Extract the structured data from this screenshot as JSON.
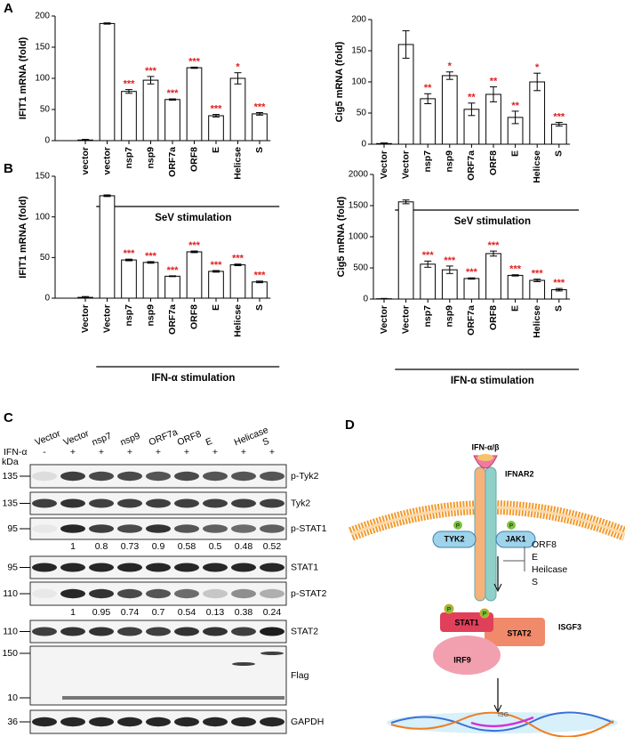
{
  "panels": [
    "A",
    "B",
    "C",
    "D"
  ],
  "chart_data": [
    {
      "type": "bar",
      "ylabel": "IFIT1 mRNA (fold)",
      "categories": [
        "vector",
        "vector",
        "nsp7",
        "nsp9",
        "ORF7a",
        "ORF8",
        "E",
        "Helicse",
        "S"
      ],
      "values": [
        1,
        188,
        79,
        97,
        66,
        117,
        40,
        100,
        43
      ],
      "errors": [
        1,
        1,
        3,
        6,
        1,
        1,
        2,
        9,
        2
      ],
      "significance": [
        null,
        null,
        "***",
        "***",
        "***",
        "***",
        "***",
        "*",
        "***"
      ],
      "group_label": "SeV stimulation",
      "ylim": [
        0,
        200
      ],
      "yticks": [
        0,
        50,
        100,
        150,
        200
      ],
      "color": "#ffffff",
      "significance_color": "#e02020"
    },
    {
      "type": "bar",
      "ylabel": "Cig5 mRNA (fold)",
      "categories": [
        "Vector",
        "Vector",
        "nsp7",
        "nsp9",
        "ORF7a",
        "ORF8",
        "E",
        "Helicse",
        "S"
      ],
      "values": [
        1,
        160,
        73,
        110,
        56,
        80,
        43,
        100,
        32
      ],
      "errors": [
        1,
        22,
        8,
        6,
        10,
        12,
        10,
        14,
        3
      ],
      "significance": [
        null,
        null,
        "**",
        "*",
        "**",
        "**",
        "**",
        "*",
        "***"
      ],
      "group_label": "SeV stimulation",
      "ylim": [
        0,
        200
      ],
      "yticks": [
        0,
        50,
        100,
        150,
        200
      ],
      "color": "#ffffff",
      "significance_color": "#e02020"
    },
    {
      "type": "bar",
      "ylabel": "IFIT1 mRNA (fold)",
      "categories": [
        "Vector",
        "Vector",
        "nsp7",
        "nsp9",
        "ORF7a",
        "ORF8",
        "E",
        "Helicse",
        "S"
      ],
      "values": [
        1,
        126,
        47,
        44,
        27,
        57,
        33,
        41,
        20
      ],
      "errors": [
        1,
        1,
        1,
        1,
        0.5,
        1,
        1,
        1,
        1
      ],
      "significance": [
        null,
        null,
        "***",
        "***",
        "***",
        "***",
        "***",
        "***",
        "***"
      ],
      "group_label": "IFN-α stimulation",
      "ylim": [
        0,
        150
      ],
      "yticks": [
        0,
        50,
        100,
        150
      ],
      "color": "#ffffff",
      "significance_color": "#e02020"
    },
    {
      "type": "bar",
      "ylabel": "Cig5 mRNA (fold)",
      "categories": [
        "Vector",
        "Vector",
        "nsp7",
        "nsp9",
        "ORF7a",
        "ORF8",
        "E",
        "Helicse",
        "S"
      ],
      "values": [
        5,
        1560,
        560,
        470,
        330,
        730,
        380,
        300,
        150
      ],
      "errors": [
        5,
        30,
        50,
        60,
        10,
        40,
        10,
        20,
        20
      ],
      "significance": [
        null,
        null,
        "***",
        "***",
        "***",
        "***",
        "***",
        "***",
        "***"
      ],
      "group_label": "IFN-α stimulation",
      "ylim": [
        0,
        2000
      ],
      "yticks": [
        0,
        500,
        1000,
        1500,
        2000
      ],
      "color": "#ffffff",
      "significance_color": "#e02020"
    }
  ],
  "blot": {
    "lanes": [
      "Vector",
      "Vector",
      "nsp7",
      "nsp9",
      "ORF7a",
      "ORF8",
      "E",
      "Helicase",
      "S"
    ],
    "treatment_label": "IFN-α",
    "treatment": [
      "-",
      "+",
      "+",
      "+",
      "+",
      "+",
      "+",
      "+",
      "+"
    ],
    "kda_label": "kDa",
    "rows": [
      {
        "name": "p-Tyk2",
        "kda": [
          135
        ]
      },
      {
        "name": "Tyk2",
        "kda": [
          135
        ]
      },
      {
        "name": "p-STAT1",
        "kda": [
          95
        ],
        "quant": [
          1,
          0.8,
          0.73,
          0.9,
          0.58,
          0.5,
          0.48,
          0.52
        ]
      },
      {
        "name": "STAT1",
        "kda": [
          95
        ]
      },
      {
        "name": "p-STAT2",
        "kda": [
          110
        ],
        "quant": [
          1,
          0.95,
          0.74,
          0.7,
          0.54,
          0.13,
          0.38,
          0.24
        ]
      },
      {
        "name": "STAT2",
        "kda": [
          110
        ]
      },
      {
        "name": "Flag",
        "kda": [
          150,
          10
        ]
      },
      {
        "name": "GAPDH",
        "kda": [
          36
        ]
      }
    ]
  },
  "diagram": {
    "ligand": "IFN-α/β",
    "receptor": "IFNAR2",
    "kinases": [
      "TYK2",
      "JAK1"
    ],
    "phospho": "P",
    "inhibitors": [
      "ORF8",
      "E",
      "Heilcase",
      "S"
    ],
    "complex": [
      "STAT1",
      "STAT2",
      "IRF9"
    ],
    "complex_name": "ISGF3",
    "target": "ISG"
  }
}
